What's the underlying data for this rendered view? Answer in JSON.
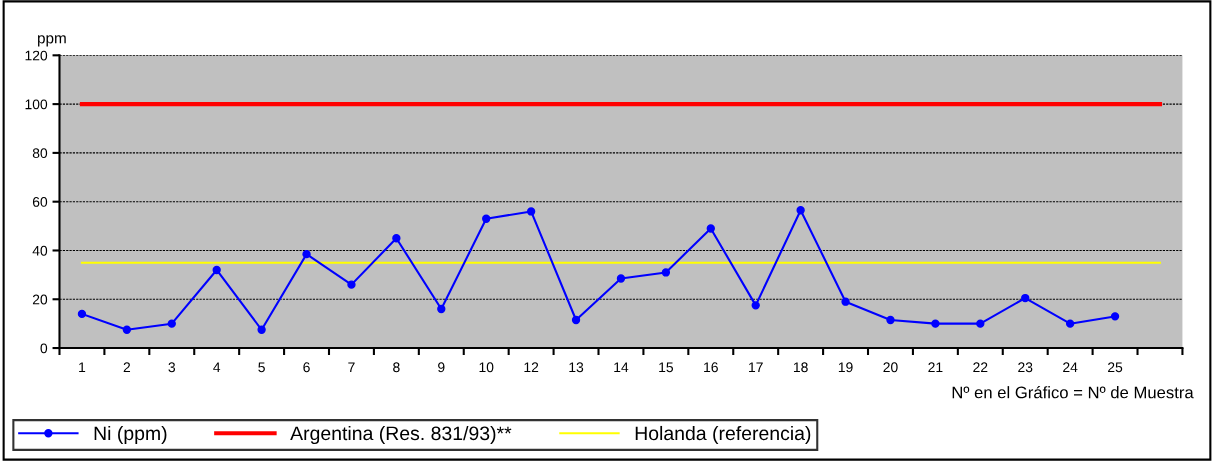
{
  "chart_data": {
    "type": "line",
    "ylabel": "ppm",
    "xlabel": "Nº en el Gráfico = Nº de Muestra",
    "categories": [
      "1",
      "2",
      "3",
      "4",
      "5",
      "6",
      "7",
      "8",
      "9",
      "10",
      "12",
      "13",
      "14",
      "15",
      "16",
      "17",
      "18",
      "19",
      "20",
      "21",
      "22",
      "23",
      "24",
      "25",
      null
    ],
    "series": [
      {
        "name": "Ni (ppm)",
        "color": "#0000ff",
        "marker": "circle",
        "values": [
          14,
          7.5,
          10,
          32,
          7.5,
          38.5,
          26,
          45,
          16,
          53,
          56,
          11.5,
          28.5,
          31,
          49,
          17.5,
          56.5,
          19,
          11.5,
          10,
          10,
          20.5,
          10,
          13,
          null
        ]
      },
      {
        "name": "Argentina (Res. 831/93)**",
        "color": "#ff0000",
        "marker": "none",
        "values": [
          100,
          100,
          100,
          100,
          100,
          100,
          100,
          100,
          100,
          100,
          100,
          100,
          100,
          100,
          100,
          100,
          100,
          100,
          100,
          100,
          100,
          100,
          100,
          100,
          100
        ]
      },
      {
        "name": "Holanda (referencia)",
        "color": "#ffff00",
        "marker": "none",
        "values": [
          35,
          35,
          35,
          35,
          35,
          35,
          35,
          35,
          35,
          35,
          35,
          35,
          35,
          35,
          35,
          35,
          35,
          35,
          35,
          35,
          35,
          35,
          35,
          35,
          35
        ]
      }
    ],
    "ylim": [
      0,
      120
    ],
    "yticks": [
      0,
      20,
      40,
      60,
      80,
      100,
      120
    ],
    "grid": "y",
    "legend": "bottom left",
    "line_style": "solid"
  }
}
